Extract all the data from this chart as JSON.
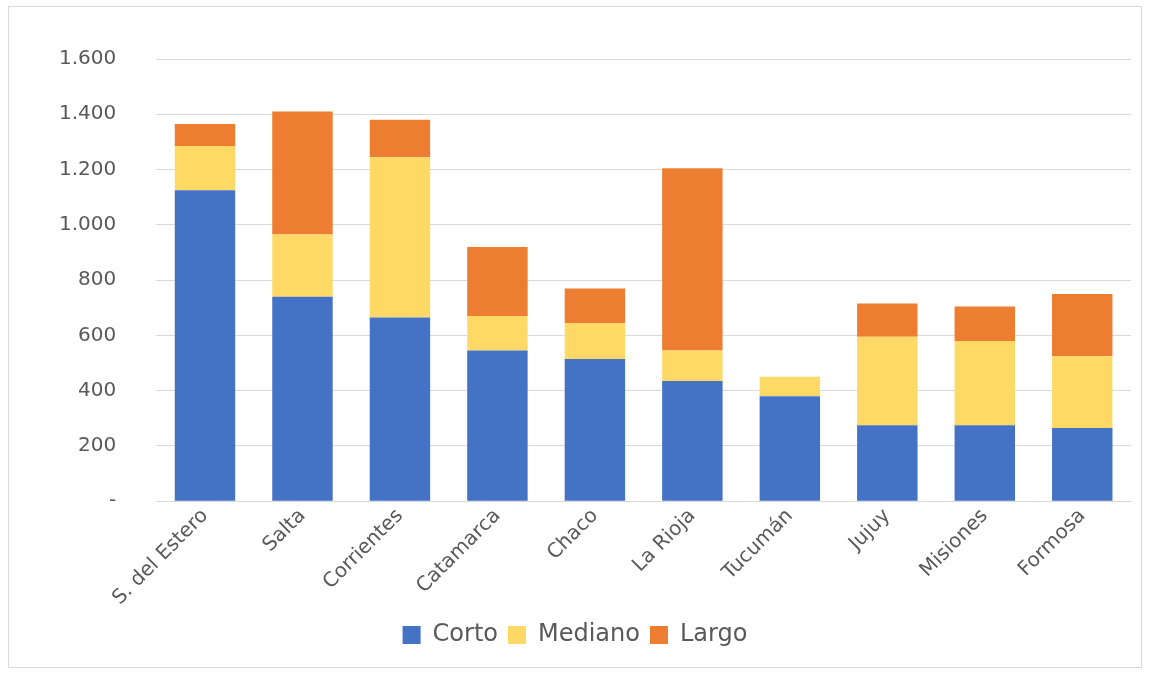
{
  "chart_data": {
    "type": "bar",
    "stacked": true,
    "categories": [
      "S. del Estero",
      "Salta",
      "Corrientes",
      "Catamarca",
      "Chaco",
      "La Rioja",
      "Tucumán",
      "Jujuy",
      "Misiones",
      "Formosa"
    ],
    "series": [
      {
        "name": "Corto",
        "color": "#4472c4",
        "values": [
          1125,
          740,
          665,
          545,
          515,
          435,
          380,
          275,
          275,
          265
        ]
      },
      {
        "name": "Mediano",
        "color": "#ffd966",
        "values": [
          160,
          225,
          580,
          125,
          130,
          110,
          70,
          320,
          305,
          260
        ]
      },
      {
        "name": "Largo",
        "color": "#ed7d31",
        "values": [
          80,
          445,
          135,
          250,
          125,
          660,
          0,
          120,
          125,
          225
        ]
      }
    ],
    "ylim": [
      0,
      1600
    ],
    "yticks": [
      {
        "value": 0,
        "label": "-"
      },
      {
        "value": 200,
        "label": "200"
      },
      {
        "value": 400,
        "label": "400"
      },
      {
        "value": 600,
        "label": "600"
      },
      {
        "value": 800,
        "label": "800"
      },
      {
        "value": 1000,
        "label": "1.000"
      },
      {
        "value": 1200,
        "label": "1.200"
      },
      {
        "value": 1400,
        "label": "1.400"
      },
      {
        "value": 1600,
        "label": "1.600"
      }
    ],
    "grid": "y",
    "legend": "bottom"
  }
}
